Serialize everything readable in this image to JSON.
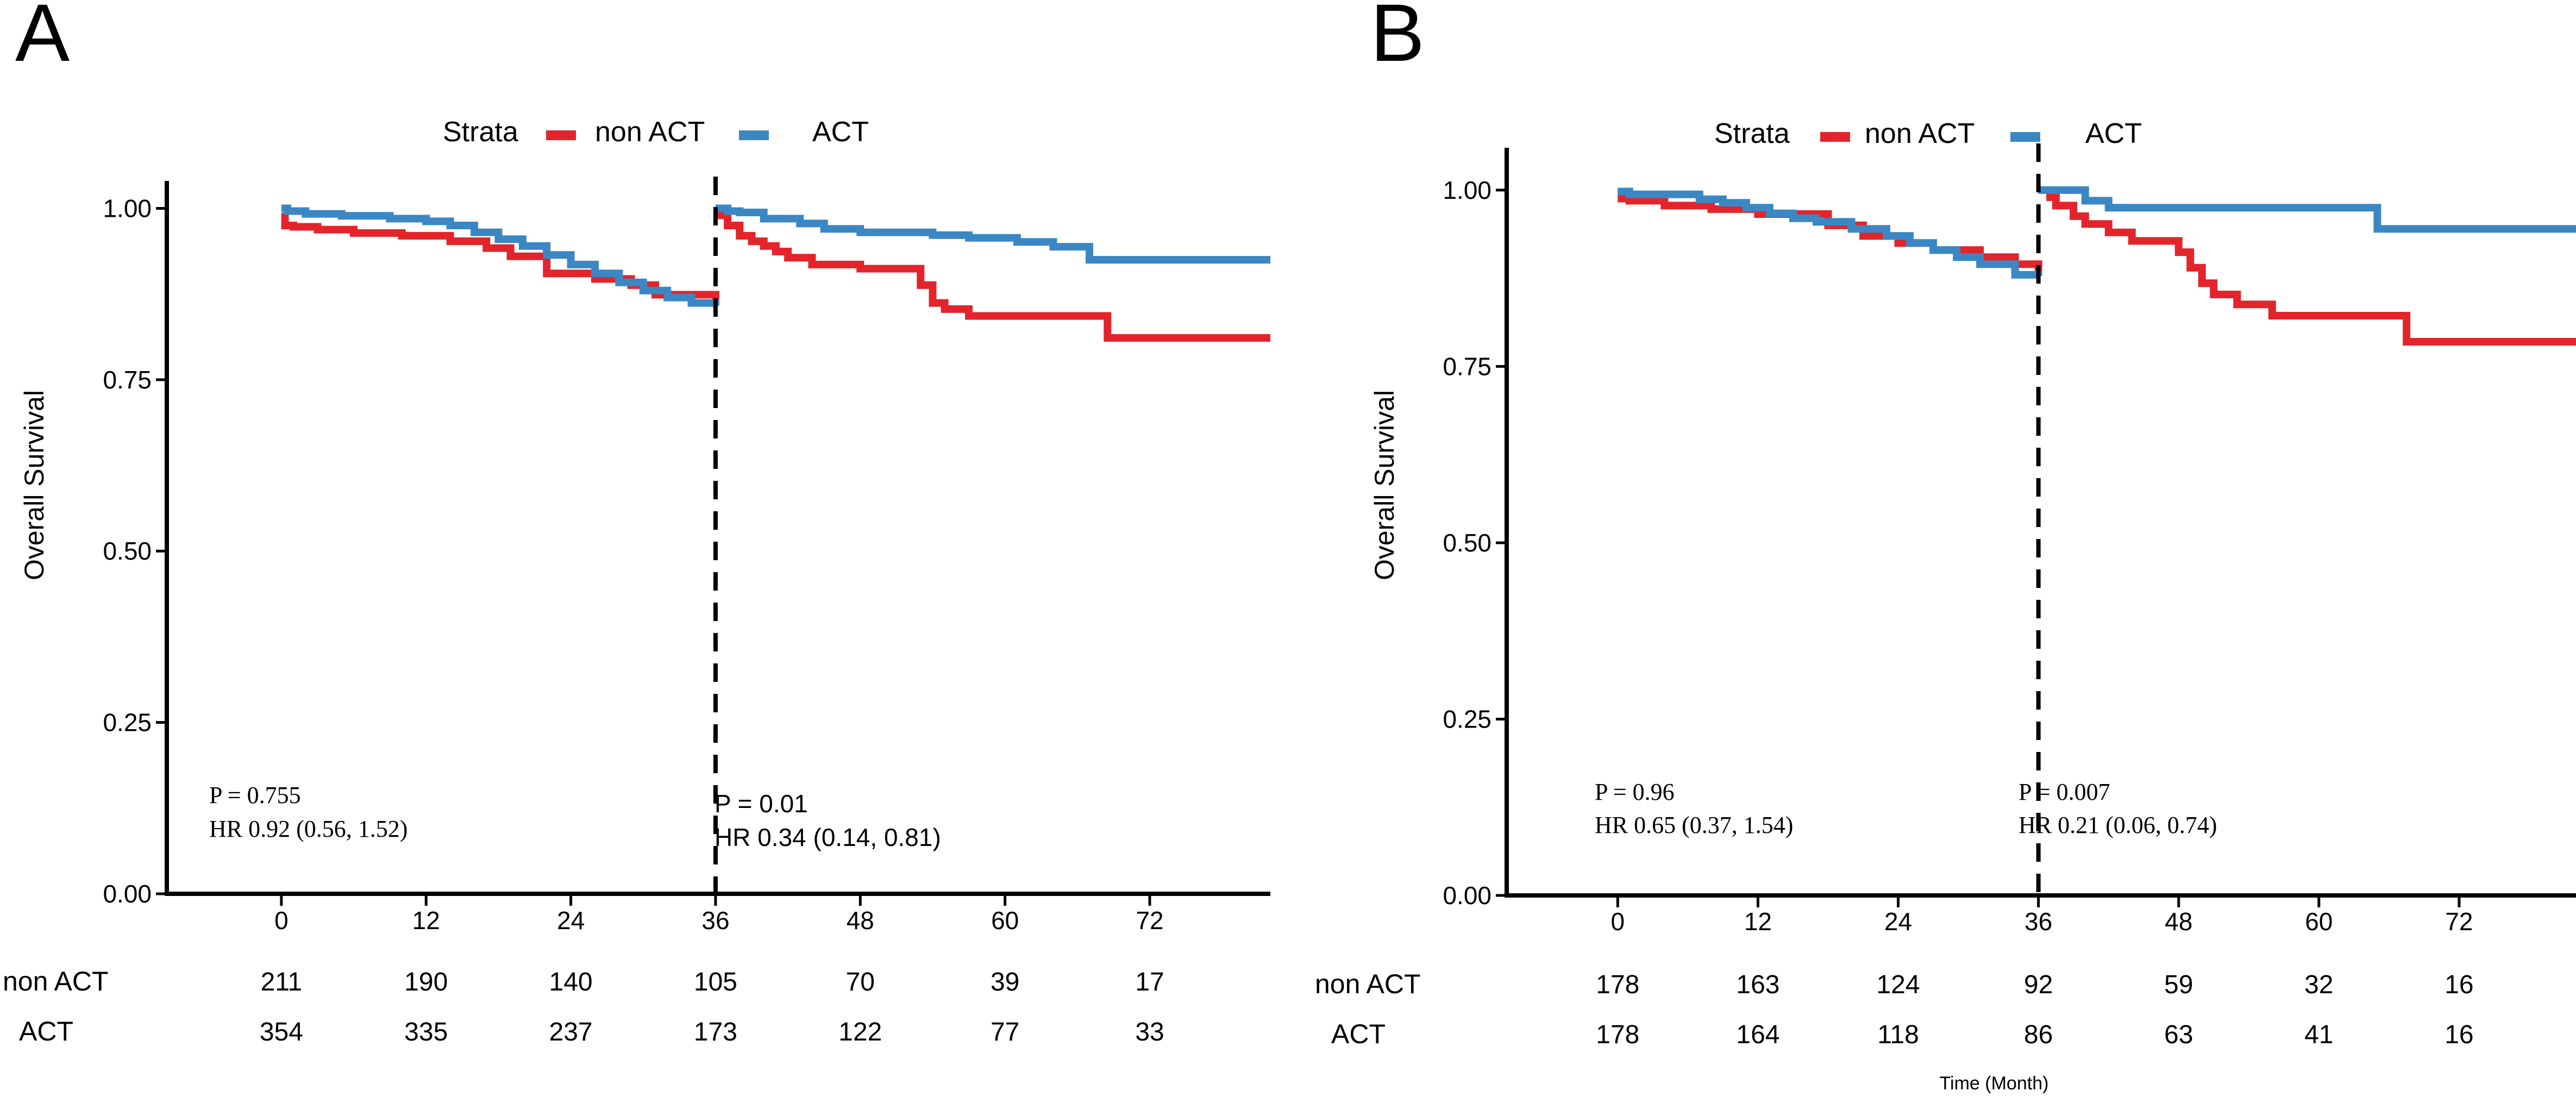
{
  "colors": {
    "non_act": "#E3242B",
    "act": "#3B87C4",
    "axis": "#000000"
  },
  "chart_data": [
    {
      "type": "line",
      "panel_label": "A",
      "legend": {
        "title": "Strata",
        "placement": "top",
        "entries": [
          "non ACT",
          "ACT"
        ]
      },
      "ylabel": "Overall Survival",
      "xlabel": "",
      "ylim": [
        0,
        1.04
      ],
      "xlim": [
        -9.5,
        82
      ],
      "xticks": [
        "0",
        "12",
        "24",
        "36",
        "48",
        "60",
        "72"
      ],
      "xtick_values": [
        0,
        12,
        24,
        36,
        48,
        60,
        72
      ],
      "yticks": [
        "0.00",
        "0.25",
        "0.50",
        "0.75",
        "1.00"
      ],
      "ytick_values": [
        0,
        0.25,
        0.5,
        0.75,
        1.0
      ],
      "landmark_month": 36,
      "annotations": [
        {
          "lines": [
            "P = 0.755",
            "HR 0.92 (0.56, 1.52)"
          ]
        },
        {
          "lines": [
            "P = 0.01",
            "HR 0.34 (0.14, 0.81)"
          ]
        }
      ],
      "series": [
        {
          "name": "non ACT",
          "segment": "0-36",
          "x": [
            0,
            0.3,
            1,
            3,
            6,
            10,
            14,
            17,
            19,
            22,
            26,
            29,
            31,
            36
          ],
          "y": [
            0.988,
            0.975,
            0.973,
            0.969,
            0.964,
            0.96,
            0.952,
            0.942,
            0.93,
            0.905,
            0.897,
            0.888,
            0.874,
            0.864
          ]
        },
        {
          "name": "ACT",
          "segment": "0-36",
          "x": [
            0,
            0.5,
            2,
            5,
            9,
            12,
            14,
            16,
            18,
            20,
            22,
            24,
            26,
            28,
            30,
            32,
            34,
            36
          ],
          "y": [
            1.0,
            0.996,
            0.992,
            0.989,
            0.985,
            0.981,
            0.975,
            0.965,
            0.955,
            0.945,
            0.932,
            0.918,
            0.905,
            0.892,
            0.88,
            0.87,
            0.862,
            0.858
          ]
        },
        {
          "name": "non ACT",
          "segment": "36-82",
          "x": [
            36,
            36.5,
            37,
            38,
            39,
            40,
            41,
            42,
            44,
            48,
            53,
            54,
            55,
            57,
            68.5,
            82
          ],
          "y": [
            1.0,
            0.99,
            0.975,
            0.96,
            0.952,
            0.945,
            0.937,
            0.928,
            0.918,
            0.912,
            0.888,
            0.862,
            0.853,
            0.843,
            0.811,
            0.811
          ]
        },
        {
          "name": "ACT",
          "segment": "36-82",
          "x": [
            36,
            37,
            38,
            40,
            43,
            45,
            48,
            54,
            57,
            61,
            64,
            67,
            82
          ],
          "y": [
            1.0,
            0.996,
            0.994,
            0.985,
            0.978,
            0.97,
            0.965,
            0.961,
            0.957,
            0.951,
            0.944,
            0.925,
            0.925
          ]
        }
      ],
      "risk_table": {
        "x_values": [
          0,
          12,
          24,
          36,
          48,
          60,
          72
        ],
        "rows": [
          {
            "label": "non ACT",
            "values": [
              "211",
              "190",
              "140",
              "105",
              "70",
              "39",
              "17"
            ]
          },
          {
            "label": "ACT",
            "values": [
              "354",
              "335",
              "237",
              "173",
              "122",
              "77",
              "33"
            ]
          }
        ]
      }
    },
    {
      "type": "line",
      "panel_label": "B",
      "legend": {
        "title": "Strata",
        "placement": "top",
        "entries": [
          "non ACT",
          "ACT"
        ]
      },
      "ylabel": "Overall Survival",
      "xlabel": "Time (Month)",
      "ylim": [
        0,
        1.06
      ],
      "xlim": [
        -9.5,
        82
      ],
      "xticks": [
        "0",
        "12",
        "24",
        "36",
        "48",
        "60",
        "72"
      ],
      "xtick_values": [
        0,
        12,
        24,
        36,
        48,
        60,
        72
      ],
      "yticks": [
        "0.00",
        "0.25",
        "0.50",
        "0.75",
        "1.00"
      ],
      "ytick_values": [
        0,
        0.25,
        0.5,
        0.75,
        1.0
      ],
      "landmark_month": 36,
      "annotations": [
        {
          "lines": [
            "P = 0.96",
            "HR 0.65 (0.37, 1.54)"
          ]
        },
        {
          "lines": [
            "P = 0.007",
            "HR 0.21 (0.06, 0.74)"
          ]
        }
      ],
      "series": [
        {
          "name": "non ACT",
          "segment": "0-36",
          "x": [
            0,
            1,
            4,
            8,
            12,
            18,
            21,
            24,
            27,
            31,
            34,
            36
          ],
          "y": [
            0.988,
            0.985,
            0.978,
            0.973,
            0.966,
            0.95,
            0.935,
            0.925,
            0.915,
            0.905,
            0.895,
            0.885
          ]
        },
        {
          "name": "ACT",
          "segment": "0-36",
          "x": [
            0,
            1,
            7,
            9,
            11,
            13,
            15,
            17,
            20,
            23,
            25,
            27,
            29,
            31,
            34,
            36
          ],
          "y": [
            0.998,
            0.994,
            0.987,
            0.982,
            0.975,
            0.967,
            0.96,
            0.955,
            0.945,
            0.935,
            0.925,
            0.915,
            0.905,
            0.895,
            0.88,
            0.878
          ]
        },
        {
          "name": "non ACT",
          "segment": "36-82",
          "x": [
            36,
            37,
            37.5,
            39,
            40,
            42,
            44,
            48,
            49,
            50,
            51,
            53,
            56,
            67.5,
            82
          ],
          "y": [
            1.0,
            0.99,
            0.978,
            0.963,
            0.952,
            0.94,
            0.928,
            0.912,
            0.89,
            0.868,
            0.852,
            0.838,
            0.822,
            0.785,
            0.785
          ]
        },
        {
          "name": "ACT",
          "segment": "36-82",
          "x": [
            36,
            39,
            40,
            42,
            65,
            82
          ],
          "y": [
            1.0,
            1.0,
            0.985,
            0.975,
            0.945,
            0.945
          ]
        }
      ],
      "risk_table": {
        "x_values": [
          0,
          12,
          24,
          36,
          48,
          60,
          72
        ],
        "rows": [
          {
            "label": "non ACT",
            "values": [
              "178",
              "163",
              "124",
              "92",
              "59",
              "32",
              "16"
            ]
          },
          {
            "label": "ACT",
            "values": [
              "178",
              "164",
              "118",
              "86",
              "63",
              "41",
              "16"
            ]
          }
        ]
      }
    }
  ]
}
